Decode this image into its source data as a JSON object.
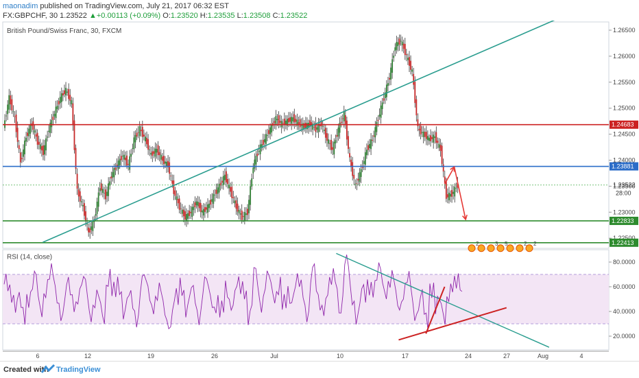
{
  "header": {
    "author": "maonadim",
    "published": "published on TradingView.com, July 21, 2017 06:32 EST",
    "symbol": "FX:GBPCHF, 30",
    "last": "1.23522",
    "change": "+0.00113 (+0.09%)",
    "open_label": "O:",
    "open": "1.23520",
    "high_label": "H:",
    "high": "1.23535",
    "low_label": "L:",
    "low": "1.23508",
    "close_label": "C:",
    "close": "1.23522"
  },
  "footer": {
    "created": "Created with",
    "brand": "TradingView"
  },
  "colors": {
    "red_line": "#cc2222",
    "blue_line": "#2a6cc8",
    "green_line": "#2e8b2e",
    "trend": "#2a9d8f",
    "rsi": "#8e24aa",
    "rsi_band": "#f3e5f5"
  },
  "chart_data": [
    {
      "type": "candlestick",
      "title": "British Pound/Swiss Franc, 30, FXCM",
      "y_ticks": [
        "1.26500",
        "1.26000",
        "1.25500",
        "1.25000",
        "1.24500",
        "1.24000",
        "1.23500",
        "1.23000",
        "1.22500"
      ],
      "ylim": [
        1.2228,
        1.2665
      ],
      "x_ticks": [
        "6",
        "12",
        "19",
        "26",
        "Jul",
        "10",
        "17",
        "24",
        "27",
        "Aug",
        "4"
      ],
      "horizontal_levels": [
        {
          "value": 1.24683,
          "label": "1.24683",
          "color": "#cc2222"
        },
        {
          "value": 1.23881,
          "label": "1.23881",
          "color": "#2a6cc8"
        },
        {
          "value": 1.22833,
          "label": "1.22833",
          "color": "#2e8b2e"
        },
        {
          "value": 1.22413,
          "label": "1.22413",
          "color": "#2e8b2e"
        }
      ],
      "current_price": {
        "value": 1.23522,
        "label": "1.23522",
        "countdown": "28:00"
      },
      "price_path": [
        [
          0,
          1.2462
        ],
        [
          1,
          1.252
        ],
        [
          2,
          1.248
        ],
        [
          3,
          1.2395
        ],
        [
          4,
          1.2445
        ],
        [
          5,
          1.247
        ],
        [
          6,
          1.2435
        ],
        [
          7,
          1.2415
        ],
        [
          8,
          1.246
        ],
        [
          9,
          1.249
        ],
        [
          10,
          1.252
        ],
        [
          11,
          1.2535
        ],
        [
          12,
          1.251
        ],
        [
          13,
          1.234
        ],
        [
          14,
          1.231
        ],
        [
          15,
          1.226
        ],
        [
          16,
          1.2285
        ],
        [
          17,
          1.235
        ],
        [
          18,
          1.233
        ],
        [
          19,
          1.237
        ],
        [
          20,
          1.239
        ],
        [
          21,
          1.241
        ],
        [
          22,
          1.239
        ],
        [
          23,
          1.244
        ],
        [
          24,
          1.246
        ],
        [
          25,
          1.244
        ],
        [
          26,
          1.241
        ],
        [
          27,
          1.242
        ],
        [
          28,
          1.24
        ],
        [
          29,
          1.239
        ],
        [
          30,
          1.234
        ],
        [
          31,
          1.231
        ],
        [
          32,
          1.229
        ],
        [
          33,
          1.23
        ],
        [
          34,
          1.232
        ],
        [
          35,
          1.23
        ],
        [
          36,
          1.231
        ],
        [
          37,
          1.233
        ],
        [
          38,
          1.235
        ],
        [
          39,
          1.237
        ],
        [
          40,
          1.234
        ],
        [
          41,
          1.231
        ],
        [
          42,
          1.229
        ],
        [
          43,
          1.23
        ],
        [
          44,
          1.239
        ],
        [
          45,
          1.242
        ],
        [
          46,
          1.244
        ],
        [
          47,
          1.246
        ],
        [
          48,
          1.248
        ],
        [
          49,
          1.247
        ],
        [
          50,
          1.2475
        ],
        [
          51,
          1.248
        ],
        [
          52,
          1.247
        ],
        [
          53,
          1.2465
        ],
        [
          54,
          1.247
        ],
        [
          55,
          1.246
        ],
        [
          56,
          1.247
        ],
        [
          57,
          1.244
        ],
        [
          58,
          1.242
        ],
        [
          59,
          1.246
        ],
        [
          60,
          1.249
        ],
        [
          61,
          1.24
        ],
        [
          62,
          1.235
        ],
        [
          63,
          1.238
        ],
        [
          64,
          1.242
        ],
        [
          65,
          1.244
        ],
        [
          66,
          1.248
        ],
        [
          67,
          1.252
        ],
        [
          68,
          1.256
        ],
        [
          69,
          1.262
        ],
        [
          70,
          1.263
        ],
        [
          71,
          1.26
        ],
        [
          72,
          1.257
        ],
        [
          73,
          1.246
        ],
        [
          74,
          1.245
        ],
        [
          75,
          1.244
        ],
        [
          76,
          1.2445
        ],
        [
          77,
          1.242
        ],
        [
          78,
          1.233
        ],
        [
          79,
          1.2335
        ],
        [
          80,
          1.2352
        ]
      ],
      "annotations": [
        {
          "type": "trendline",
          "label": "rising support",
          "from": [
            6.8,
            1.2242
          ],
          "to": [
            37.6,
            1.2388
          ]
        },
        {
          "type": "arrow",
          "color": "#e53935",
          "from": [
            77.6,
            1.2354
          ],
          "to": [
            79.3,
            1.2387
          ]
        },
        {
          "type": "arrow",
          "color": "#e53935",
          "from": [
            79.3,
            1.2387
          ],
          "to": [
            81.3,
            1.2286
          ]
        }
      ],
      "event_icons": [
        {
          "badge": "2"
        },
        {
          "badge": "-"
        },
        {
          "badge": "3"
        },
        {
          "badge": "5"
        },
        {
          "badge": "-"
        },
        {
          "badge": "2"
        },
        {
          "badge": "2"
        }
      ]
    },
    {
      "type": "line",
      "title": "RSI (14, close)",
      "y_ticks": [
        "80.0000",
        "60.0000",
        "40.0000",
        "20.0000"
      ],
      "ylim": [
        10,
        88
      ],
      "overbought": 70,
      "oversold": 30,
      "series": [
        {
          "name": "RSI (14, close)",
          "values": [
            62,
            55,
            48,
            38,
            52,
            66,
            44,
            58,
            70,
            52,
            40,
            60,
            48,
            55,
            62,
            40,
            50,
            38,
            66,
            55,
            60,
            42,
            50,
            36,
            64,
            58,
            46,
            55,
            40,
            32,
            50,
            60,
            44,
            55,
            38,
            62,
            52,
            46,
            40,
            56,
            48,
            60,
            58,
            38,
            70,
            48,
            66,
            55,
            60,
            45,
            52,
            62,
            58,
            40,
            72,
            50,
            45,
            60,
            66,
            44,
            80,
            52,
            38,
            55,
            62,
            60,
            72,
            58,
            65,
            48,
            54,
            64,
            40,
            50,
            33,
            60,
            46,
            38,
            55,
            60,
            62
          ]
        }
      ],
      "annotations": [
        {
          "type": "trendline",
          "label": "descending resistance",
          "from": [
            58.5,
            87
          ],
          "to": [
            96.0,
            11
          ]
        },
        {
          "type": "trendline",
          "label": "rising support",
          "from": [
            69.5,
            17
          ],
          "to": [
            88.5,
            43
          ]
        },
        {
          "type": "trendline",
          "label": "short rising line",
          "from": [
            74.3,
            22
          ],
          "to": [
            77.6,
            60
          ]
        }
      ]
    }
  ]
}
